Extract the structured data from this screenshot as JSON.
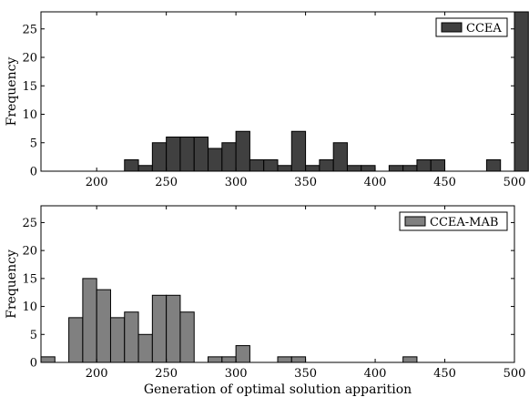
{
  "chart_data": [
    {
      "type": "bar",
      "subtype": "histogram",
      "bin_width": 10,
      "xlim": [
        160,
        500
      ],
      "ylim": [
        0,
        28
      ],
      "xticks": [
        200,
        250,
        300,
        350,
        400,
        450,
        500
      ],
      "yticks": [
        0,
        5,
        10,
        15,
        20,
        25
      ],
      "ylabel": "Frequency",
      "xlabel": "",
      "grid": false,
      "legend_position": "top-right",
      "series": [
        {
          "name": "CCEA",
          "color": "#404040",
          "bin_starts": [
            220,
            230,
            240,
            250,
            260,
            270,
            280,
            290,
            300,
            310,
            320,
            330,
            340,
            350,
            360,
            370,
            380,
            390,
            410,
            420,
            430,
            440,
            480,
            500
          ],
          "values": [
            2,
            1,
            5,
            6,
            6,
            6,
            4,
            5,
            7,
            2,
            2,
            1,
            7,
            1,
            2,
            5,
            1,
            1,
            1,
            1,
            2,
            2,
            2,
            28
          ]
        }
      ]
    },
    {
      "type": "bar",
      "subtype": "histogram",
      "bin_width": 10,
      "xlim": [
        160,
        500
      ],
      "ylim": [
        0,
        28
      ],
      "xticks": [
        200,
        250,
        300,
        350,
        400,
        450,
        500
      ],
      "yticks": [
        0,
        5,
        10,
        15,
        20,
        25
      ],
      "ylabel": "Frequency",
      "xlabel": "Generation of optimal solution apparition",
      "grid": false,
      "legend_position": "top-right",
      "series": [
        {
          "name": "CCEA-MAB",
          "color": "#808080",
          "bin_starts": [
            160,
            180,
            190,
            200,
            210,
            220,
            230,
            240,
            250,
            260,
            280,
            290,
            300,
            330,
            340,
            420
          ],
          "values": [
            1,
            8,
            15,
            13,
            8,
            9,
            5,
            12,
            12,
            9,
            1,
            1,
            3,
            1,
            1,
            1
          ]
        }
      ]
    }
  ]
}
